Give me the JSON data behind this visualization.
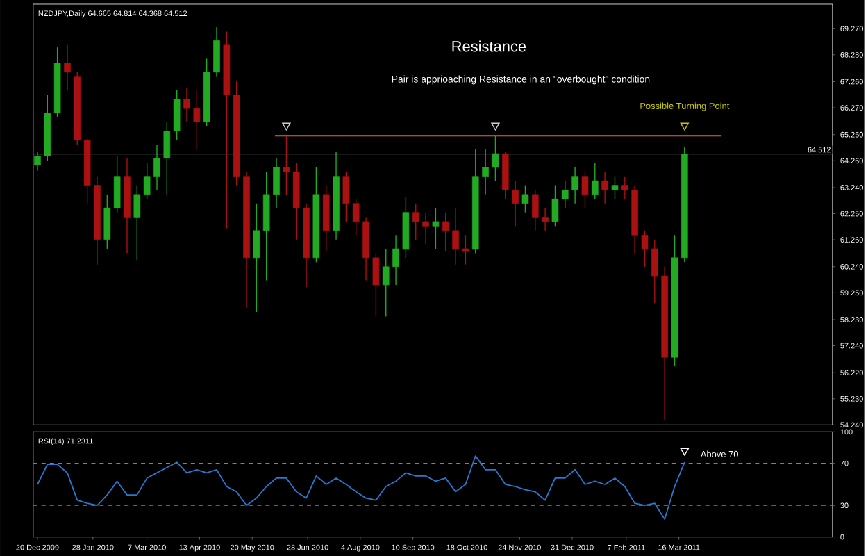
{
  "chart_data": [
    {
      "type": "candlestick",
      "title": "Resistance",
      "subtitle": "Pair is apprioaching Resistance in an \"overbought\" condition",
      "x": [
        "2009-12-20",
        "2009-12-27",
        "2010-01-03",
        "2010-01-10",
        "2010-01-17",
        "2010-01-24",
        "2010-01-31",
        "2010-02-07",
        "2010-02-14",
        "2010-02-21",
        "2010-02-28",
        "2010-03-07",
        "2010-03-14",
        "2010-03-21",
        "2010-03-28",
        "2010-04-04",
        "2010-04-11",
        "2010-04-18",
        "2010-04-25",
        "2010-05-02",
        "2010-05-09",
        "2010-05-16",
        "2010-05-23",
        "2010-05-30",
        "2010-06-06",
        "2010-06-13",
        "2010-06-20",
        "2010-06-27",
        "2010-07-04",
        "2010-07-11",
        "2010-07-18",
        "2010-07-25",
        "2010-08-01",
        "2010-08-08",
        "2010-08-15",
        "2010-08-22",
        "2010-08-29",
        "2010-09-05",
        "2010-09-12",
        "2010-09-19",
        "2010-09-26",
        "2010-10-03",
        "2010-10-10",
        "2010-10-17",
        "2010-10-24",
        "2010-10-31",
        "2010-11-07",
        "2010-11-14",
        "2010-11-21",
        "2010-11-28",
        "2010-12-05",
        "2010-12-12",
        "2010-12-19",
        "2010-12-26",
        "2011-01-02",
        "2011-01-09",
        "2011-01-16",
        "2011-01-23",
        "2011-01-30",
        "2011-02-06",
        "2011-02-13",
        "2011-02-20",
        "2011-02-27",
        "2011-03-06",
        "2011-03-13",
        "2011-03-20"
      ],
      "ohlc": [
        [
          64.1,
          64.61,
          63.88,
          64.44
        ],
        [
          64.44,
          66.76,
          64.27,
          66.07
        ],
        [
          66.07,
          68.56,
          65.9,
          67.96
        ],
        [
          67.96,
          68.65,
          66.93,
          67.62
        ],
        [
          67.44,
          67.62,
          64.87,
          65.04
        ],
        [
          65.04,
          65.13,
          62.64,
          63.33
        ],
        [
          63.33,
          63.67,
          60.32,
          61.27
        ],
        [
          61.27,
          62.98,
          60.92,
          62.47
        ],
        [
          62.47,
          64.44,
          62.3,
          63.67
        ],
        [
          63.67,
          64.36,
          60.75,
          62.12
        ],
        [
          62.12,
          63.33,
          60.49,
          62.98
        ],
        [
          62.98,
          64.18,
          62.81,
          63.67
        ],
        [
          63.67,
          64.87,
          63.15,
          64.36
        ],
        [
          64.36,
          65.73,
          62.98,
          65.39
        ],
        [
          65.39,
          66.93,
          65.04,
          66.59
        ],
        [
          66.59,
          67.02,
          65.73,
          66.24
        ],
        [
          66.24,
          66.93,
          64.7,
          65.73
        ],
        [
          65.73,
          68.13,
          65.56,
          67.62
        ],
        [
          67.62,
          69.33,
          67.44,
          68.82
        ],
        [
          68.65,
          69.16,
          61.7,
          66.76
        ],
        [
          66.76,
          67.27,
          63.33,
          63.67
        ],
        [
          63.67,
          63.84,
          58.69,
          60.58
        ],
        [
          60.58,
          62.64,
          58.52,
          61.61
        ],
        [
          61.61,
          63.84,
          59.72,
          62.98
        ],
        [
          62.98,
          64.36,
          62.47,
          64.01
        ],
        [
          64.01,
          65.21,
          62.98,
          63.84
        ],
        [
          63.84,
          64.18,
          61.27,
          62.47
        ],
        [
          62.47,
          62.64,
          59.46,
          60.58
        ],
        [
          60.58,
          64.01,
          60.41,
          62.98
        ],
        [
          62.98,
          63.33,
          60.84,
          61.61
        ],
        [
          61.61,
          64.61,
          61.27,
          63.67
        ],
        [
          63.67,
          63.84,
          61.95,
          62.64
        ],
        [
          62.64,
          62.81,
          61.44,
          61.95
        ],
        [
          61.95,
          62.12,
          59.72,
          60.58
        ],
        [
          60.58,
          60.75,
          58.35,
          59.55
        ],
        [
          59.55,
          60.92,
          58.35,
          60.24
        ],
        [
          60.24,
          61.44,
          59.55,
          60.92
        ],
        [
          60.92,
          62.9,
          60.58,
          62.3
        ],
        [
          62.3,
          62.64,
          61.27,
          61.95
        ],
        [
          61.95,
          62.3,
          61.1,
          61.78
        ],
        [
          61.78,
          62.47,
          60.92,
          61.95
        ],
        [
          61.95,
          62.3,
          60.84,
          61.61
        ],
        [
          61.61,
          62.47,
          60.32,
          60.92
        ],
        [
          60.92,
          61.44,
          60.32,
          60.84
        ],
        [
          60.92,
          64.7,
          60.75,
          63.67
        ],
        [
          63.67,
          64.7,
          62.98,
          64.01
        ],
        [
          64.01,
          65.21,
          63.5,
          64.53
        ],
        [
          64.53,
          64.61,
          62.81,
          63.15
        ],
        [
          63.15,
          63.5,
          61.78,
          62.64
        ],
        [
          62.64,
          63.33,
          62.3,
          62.98
        ],
        [
          62.98,
          63.15,
          61.61,
          62.12
        ],
        [
          62.12,
          62.47,
          61.61,
          61.95
        ],
        [
          61.95,
          63.33,
          61.78,
          62.81
        ],
        [
          62.81,
          63.5,
          62.47,
          63.15
        ],
        [
          63.15,
          64.01,
          62.64,
          63.67
        ],
        [
          63.67,
          63.84,
          62.47,
          62.98
        ],
        [
          62.98,
          64.18,
          62.81,
          63.5
        ],
        [
          63.5,
          63.84,
          62.64,
          63.15
        ],
        [
          63.15,
          63.67,
          62.81,
          63.33
        ],
        [
          63.33,
          63.67,
          62.81,
          63.15
        ],
        [
          63.15,
          63.33,
          60.75,
          61.44
        ],
        [
          61.44,
          61.61,
          60.24,
          60.92
        ],
        [
          60.92,
          61.27,
          58.86,
          59.89
        ],
        [
          59.89,
          60.24,
          54.4,
          56.8
        ],
        [
          56.8,
          61.44,
          56.46,
          60.58
        ],
        [
          60.58,
          64.78,
          60.41,
          64.51
        ]
      ],
      "colors": [
        "#22aa22",
        "#22aa22",
        "#22aa22",
        "#aa1111",
        "#aa1111",
        "#aa1111",
        "#aa1111",
        "#22aa22",
        "#22aa22",
        "#aa1111",
        "#22aa22",
        "#22aa22",
        "#22aa22",
        "#22aa22",
        "#22aa22",
        "#aa1111",
        "#aa1111",
        "#22aa22",
        "#22aa22",
        "#aa1111",
        "#aa1111",
        "#aa1111",
        "#22aa22",
        "#22aa22",
        "#22aa22",
        "#aa1111",
        "#aa1111",
        "#aa1111",
        "#22aa22",
        "#aa1111",
        "#22aa22",
        "#aa1111",
        "#aa1111",
        "#aa1111",
        "#aa1111",
        "#22aa22",
        "#22aa22",
        "#22aa22",
        "#aa1111",
        "#aa1111",
        "#22aa22",
        "#aa1111",
        "#aa1111",
        "#aa1111",
        "#22aa22",
        "#22aa22",
        "#22aa22",
        "#aa1111",
        "#aa1111",
        "#22aa22",
        "#aa1111",
        "#aa1111",
        "#22aa22",
        "#22aa22",
        "#22aa22",
        "#aa1111",
        "#22aa22",
        "#aa1111",
        "#22aa22",
        "#aa1111",
        "#aa1111",
        "#aa1111",
        "#aa1111",
        "#aa1111",
        "#22aa22",
        "#22aa22"
      ],
      "series": [
        {
          "type": "line",
          "color": "#f0604a",
          "x": [
            "2010-06-05",
            "2011-04-15"
          ],
          "values": [
            65.21,
            65.21
          ]
        },
        {
          "type": "scatter",
          "marker": "triangle",
          "colors": [
            "#d0d0d0",
            "#d0d0d0",
            "#c8c800"
          ],
          "x": [
            "2010-06-13",
            "2010-11-07",
            "2011-03-20"
          ],
          "values": [
            65.6,
            65.6,
            65.6
          ]
        }
      ],
      "xlim": [
        "2009-12-17",
        "2011-07-02"
      ],
      "ylim": [
        54.24,
        70.2
      ],
      "yticks": [
        {
          "value": 69.27,
          "label": "69.270"
        },
        {
          "value": 68.28,
          "label": "68.280"
        },
        {
          "value": 67.26,
          "label": "67.260"
        },
        {
          "value": 66.27,
          "label": "66.270"
        },
        {
          "value": 65.25,
          "label": "65.250"
        },
        {
          "value": 64.26,
          "label": "64.260"
        },
        {
          "value": 63.24,
          "label": "63.240"
        },
        {
          "value": 62.25,
          "label": "62.250"
        },
        {
          "value": 61.26,
          "label": "61.260"
        },
        {
          "value": 60.24,
          "label": "60.240"
        },
        {
          "value": 59.25,
          "label": "59.250"
        },
        {
          "value": 58.23,
          "label": "58.230"
        },
        {
          "value": 57.24,
          "label": "57.240"
        },
        {
          "value": 56.22,
          "label": "56.220"
        },
        {
          "value": 55.23,
          "label": "55.230"
        },
        {
          "value": 54.24,
          "label": "54.240"
        }
      ],
      "tick_labels": "y",
      "ref_lines": [
        {
          "axis": "y",
          "value": 64.512,
          "label": "64.512",
          "color": "#606060"
        }
      ],
      "annotations": [
        "NZDJPY,Daily 64.665 64.814 64.368 64.512",
        {
          "text": "Possible Turning Point",
          "x": "2011-03-20",
          "y": 65.6
        }
      ]
    },
    {
      "type": "line",
      "x": [
        "2009-12-20",
        "2009-12-27",
        "2010-01-03",
        "2010-01-10",
        "2010-01-17",
        "2010-01-24",
        "2010-01-31",
        "2010-02-07",
        "2010-02-14",
        "2010-02-21",
        "2010-02-28",
        "2010-03-07",
        "2010-03-14",
        "2010-03-21",
        "2010-03-28",
        "2010-04-04",
        "2010-04-11",
        "2010-04-18",
        "2010-04-25",
        "2010-05-02",
        "2010-05-09",
        "2010-05-16",
        "2010-05-23",
        "2010-05-30",
        "2010-06-06",
        "2010-06-13",
        "2010-06-20",
        "2010-06-27",
        "2010-07-04",
        "2010-07-11",
        "2010-07-18",
        "2010-07-25",
        "2010-08-01",
        "2010-08-08",
        "2010-08-15",
        "2010-08-22",
        "2010-08-29",
        "2010-09-05",
        "2010-09-12",
        "2010-09-19",
        "2010-09-26",
        "2010-10-03",
        "2010-10-10",
        "2010-10-17",
        "2010-10-24",
        "2010-10-31",
        "2010-11-07",
        "2010-11-14",
        "2010-11-21",
        "2010-11-28",
        "2010-12-05",
        "2010-12-12",
        "2010-12-19",
        "2010-12-26",
        "2011-01-02",
        "2011-01-09",
        "2011-01-16",
        "2011-01-23",
        "2011-01-30",
        "2011-02-06",
        "2011-02-13",
        "2011-02-20",
        "2011-02-27",
        "2011-03-06",
        "2011-03-13",
        "2011-03-20"
      ],
      "series": [
        {
          "color": "#2878d0",
          "values": [
            50,
            69,
            69,
            61,
            35,
            32,
            30,
            40,
            53,
            40,
            40,
            56,
            61,
            66,
            71,
            61,
            64,
            61,
            64,
            48,
            43,
            30,
            37,
            48,
            56,
            56,
            43,
            37,
            58,
            50,
            56,
            50,
            43,
            37,
            35,
            48,
            53,
            61,
            58,
            58,
            53,
            56,
            43,
            50,
            77,
            64,
            64,
            50,
            48,
            45,
            43,
            35,
            56,
            56,
            64,
            50,
            53,
            50,
            56,
            48,
            32,
            30,
            32,
            17,
            48,
            71
          ]
        },
        {
          "type": "scatter",
          "marker": "triangle",
          "color": "#ffffff",
          "x": [
            "2011-03-20"
          ],
          "values": [
            82
          ]
        }
      ],
      "xlim": [
        "2009-12-17",
        "2011-07-02"
      ],
      "ylim": [
        0,
        100
      ],
      "yticks": [
        0,
        30,
        70,
        100
      ],
      "xticks": [
        {
          "value": "2009-12-20",
          "label": "20 Dec 2009"
        },
        {
          "value": "2010-01-28",
          "label": "28 Jan 2010"
        },
        {
          "value": "2010-03-07",
          "label": "7 Mar 2010"
        },
        {
          "value": "2010-04-13",
          "label": "13 Apr 2010"
        },
        {
          "value": "2010-05-20",
          "label": "20 May 2010"
        },
        {
          "value": "2010-06-28",
          "label": "28 Jun 2010"
        },
        {
          "value": "2010-08-04",
          "label": "4 Aug 2010"
        },
        {
          "value": "2010-09-10",
          "label": "10 Sep 2010"
        },
        {
          "value": "2010-10-18",
          "label": "18 Oct 2010"
        },
        {
          "value": "2010-11-24",
          "label": "24 Nov 2010"
        },
        {
          "value": "2010-12-31",
          "label": "31 Dec 2010"
        },
        {
          "value": "2011-02-07",
          "label": "7 Feb 2011"
        },
        {
          "value": "2011-03-16",
          "label": "16 Mar 2011"
        }
      ],
      "ref_lines": [
        {
          "axis": "y",
          "value": 70,
          "color": "#808080",
          "line_style": "dashed"
        },
        {
          "axis": "y",
          "value": 30,
          "color": "#808080",
          "line_style": "dashed"
        }
      ],
      "annotations": [
        "RSI(14) 71.2311",
        {
          "text": "Above 70",
          "x": "2011-03-20",
          "y": 71
        }
      ]
    }
  ]
}
